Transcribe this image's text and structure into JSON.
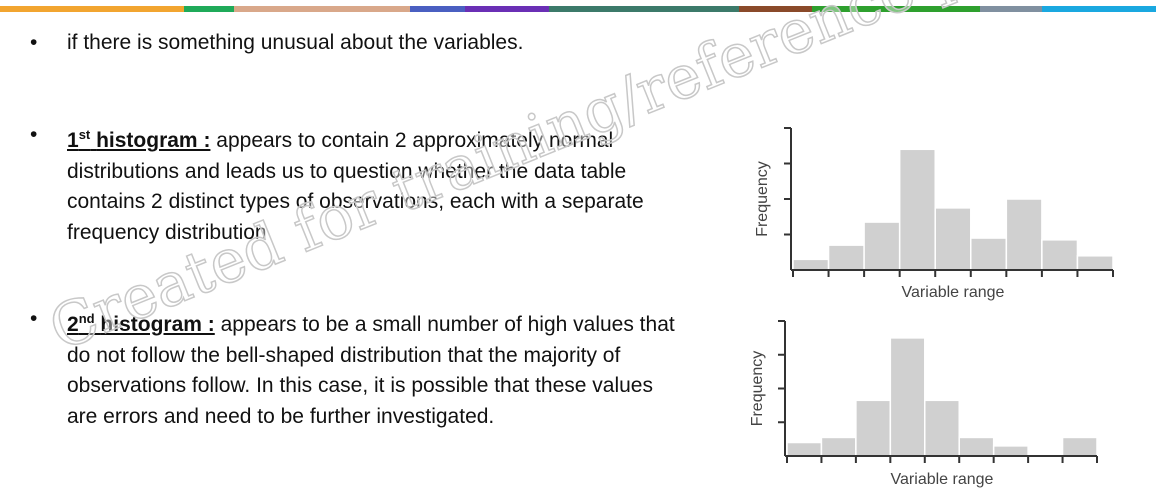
{
  "bullets": [
    {
      "text": "if there is something unusual about the variables."
    },
    {
      "number": "1",
      "suffix": "st",
      "label": "histogram :",
      "text": "appears to contain 2 approximately normal distributions and leads us to question whether the data table contains 2 distinct types of observations, each with a separate frequency distribution"
    },
    {
      "number": "2",
      "suffix": "nd",
      "label": "histogram :",
      "text": "appears to be a small number of high values that do not follow the bell-shaped distribution that the majority of observations follow. In this case, it is possible that these values are errors and need to be further investigated."
    }
  ],
  "watermark": "Created for training/reference purposes",
  "chart_data": [
    {
      "type": "bar",
      "xlabel": "Variable range",
      "ylabel": "Frequency",
      "color": "#d0d0d0",
      "categories": [
        null,
        null,
        null,
        null,
        null,
        null,
        null,
        null,
        null
      ],
      "values": [
        0.3,
        0.7,
        1.35,
        3.4,
        1.75,
        0.9,
        2.0,
        0.85,
        0.4
      ],
      "ylim": [
        0,
        4
      ],
      "yticks": [
        1,
        2,
        3
      ]
    },
    {
      "type": "bar",
      "xlabel": "Variable range",
      "ylabel": "Frequency",
      "color": "#d0d0d0",
      "categories": [
        null,
        null,
        null,
        null,
        null,
        null,
        null,
        null,
        null
      ],
      "values": [
        0.4,
        0.55,
        1.65,
        3.5,
        1.65,
        0.55,
        0.3,
        0,
        0.55
      ],
      "ylim": [
        0,
        4
      ],
      "yticks": [
        1,
        2,
        3
      ]
    }
  ]
}
